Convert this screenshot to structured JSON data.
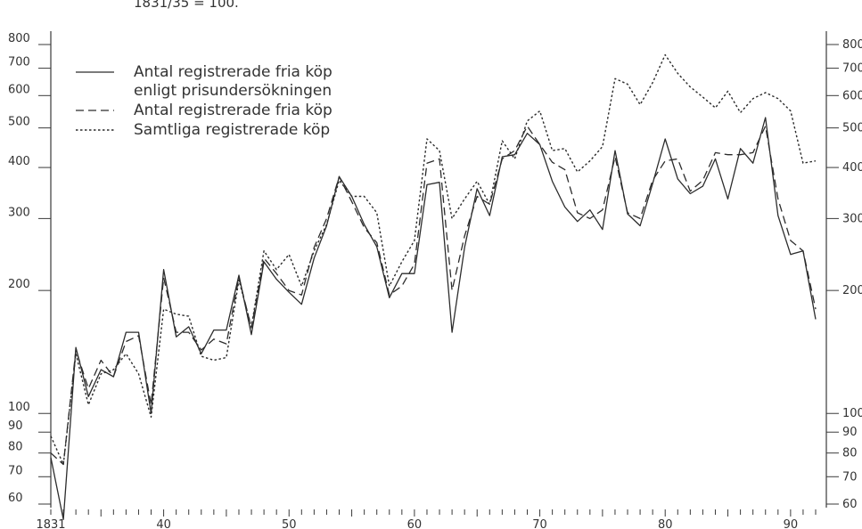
{
  "chart_data": {
    "type": "line",
    "note": "1831/35 = 100.",
    "y_scale": "log",
    "ylim": [
      60,
      800
    ],
    "xlim": [
      1831,
      1892
    ],
    "x_ticks_labeled": [
      "1831",
      "40",
      "50",
      "60",
      "70",
      "80",
      "90"
    ],
    "y_ticks_left": [
      "60",
      "70",
      "80",
      "90",
      "100",
      "200",
      "300",
      "400",
      "500",
      "600",
      "700",
      "800"
    ],
    "y_ticks_right": [
      "60",
      "70",
      "80",
      "90",
      "100",
      "200",
      "300",
      "400",
      "500",
      "600",
      "700",
      "800"
    ],
    "grid": false,
    "legend_position": "top-left",
    "series": [
      {
        "name": "Antal registrerade fria köp enligt prisundersökningen",
        "name_lines": [
          "Antal registrerade fria köp",
          "enligt prisundersökningen"
        ],
        "style": "solid",
        "x": [
          1831,
          1832,
          1833,
          1834,
          1835,
          1836,
          1837,
          1838,
          1839,
          1840,
          1841,
          1842,
          1843,
          1844,
          1845,
          1846,
          1847,
          1848,
          1849,
          1850,
          1851,
          1852,
          1853,
          1854,
          1855,
          1856,
          1857,
          1858,
          1859,
          1860,
          1861,
          1862,
          1863,
          1864,
          1865,
          1866,
          1867,
          1868,
          1869,
          1870,
          1871,
          1872,
          1873,
          1874,
          1875,
          1876,
          1877,
          1878,
          1879,
          1880,
          1881,
          1882,
          1883,
          1884,
          1885,
          1886,
          1887,
          1888,
          1889,
          1890,
          1891,
          1892
        ],
        "values": [
          78,
          55,
          145,
          110,
          128,
          123,
          158,
          158,
          100,
          225,
          154,
          163,
          140,
          160,
          160,
          218,
          156,
          235,
          213,
          198,
          185,
          240,
          288,
          380,
          340,
          290,
          256,
          192,
          220,
          220,
          363,
          368,
          158,
          255,
          355,
          305,
          425,
          430,
          485,
          455,
          370,
          320,
          295,
          315,
          282,
          440,
          308,
          288,
          365,
          470,
          375,
          345,
          360,
          420,
          335,
          445,
          410,
          530,
          305,
          245,
          250,
          170
        ]
      },
      {
        "name": "Antal registrerade fria köp",
        "style": "dashed",
        "x": [
          1831,
          1832,
          1833,
          1834,
          1835,
          1836,
          1837,
          1838,
          1839,
          1840,
          1841,
          1842,
          1843,
          1844,
          1845,
          1846,
          1847,
          1848,
          1849,
          1850,
          1851,
          1852,
          1853,
          1854,
          1855,
          1856,
          1857,
          1858,
          1859,
          1860,
          1861,
          1862,
          1863,
          1864,
          1865,
          1866,
          1867,
          1868,
          1869,
          1870,
          1871,
          1872,
          1873,
          1874,
          1875,
          1876,
          1877,
          1878,
          1879,
          1880,
          1881,
          1882,
          1883,
          1884,
          1885,
          1886,
          1887,
          1888,
          1889,
          1890,
          1891,
          1892
        ],
        "values": [
          80,
          75,
          143,
          115,
          135,
          123,
          150,
          155,
          105,
          215,
          158,
          158,
          143,
          152,
          148,
          215,
          162,
          240,
          220,
          200,
          195,
          255,
          300,
          380,
          330,
          285,
          262,
          195,
          205,
          232,
          410,
          420,
          200,
          272,
          340,
          325,
          420,
          440,
          505,
          455,
          412,
          395,
          310,
          300,
          315,
          425,
          310,
          300,
          372,
          415,
          420,
          350,
          372,
          435,
          430,
          430,
          435,
          505,
          335,
          265,
          250,
          180
        ]
      },
      {
        "name": "Samtliga registrerade köp",
        "style": "dotted",
        "x": [
          1831,
          1832,
          1833,
          1834,
          1835,
          1836,
          1837,
          1838,
          1839,
          1840,
          1841,
          1842,
          1843,
          1844,
          1845,
          1846,
          1847,
          1848,
          1849,
          1850,
          1851,
          1852,
          1853,
          1854,
          1855,
          1856,
          1857,
          1858,
          1859,
          1860,
          1861,
          1862,
          1863,
          1864,
          1865,
          1866,
          1867,
          1868,
          1869,
          1870,
          1871,
          1872,
          1873,
          1874,
          1875,
          1876,
          1877,
          1878,
          1879,
          1880,
          1881,
          1882,
          1883,
          1884,
          1885,
          1886,
          1887,
          1888,
          1889,
          1890,
          1891,
          1892
        ],
        "values": [
          88,
          75,
          140,
          105,
          125,
          128,
          140,
          125,
          98,
          180,
          175,
          173,
          138,
          135,
          137,
          212,
          163,
          250,
          225,
          245,
          205,
          250,
          290,
          372,
          340,
          340,
          310,
          205,
          235,
          265,
          470,
          440,
          300,
          335,
          370,
          325,
          465,
          420,
          520,
          550,
          440,
          445,
          390,
          415,
          450,
          660,
          640,
          570,
          645,
          755,
          680,
          630,
          595,
          560,
          615,
          545,
          590,
          610,
          590,
          550,
          410,
          415
        ]
      }
    ]
  }
}
